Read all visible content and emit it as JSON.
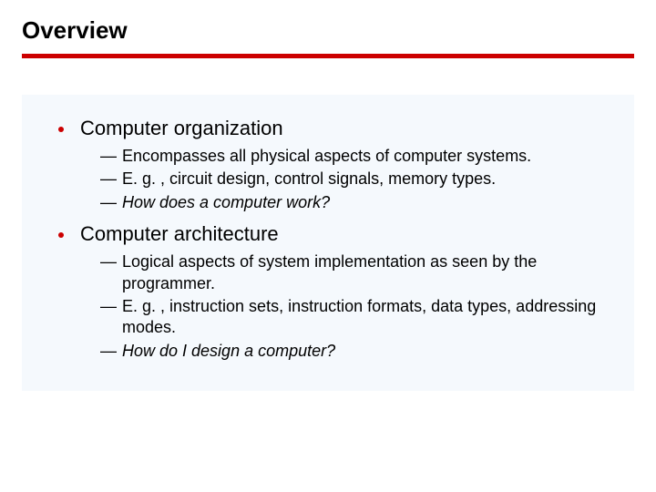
{
  "title": "Overview",
  "rule_color": "#cc0000",
  "bullet_color": "#cc0000",
  "content_bg": "#f5f9fd",
  "sections": [
    {
      "heading": "Computer organization",
      "items": [
        {
          "text": "Encompasses all physical aspects of computer systems.",
          "italic": false
        },
        {
          "text": "E. g. , circuit design, control signals, memory types.",
          "italic": false
        },
        {
          "text": "How does a computer work?",
          "italic": true
        }
      ]
    },
    {
      "heading": "Computer architecture",
      "items": [
        {
          "text": "Logical aspects of system implementation as seen by the programmer.",
          "italic": false
        },
        {
          "text": "E. g. , instruction sets, instruction formats, data types, addressing modes.",
          "italic": false
        },
        {
          "text": "How do I design a computer?",
          "italic": true
        }
      ]
    }
  ]
}
